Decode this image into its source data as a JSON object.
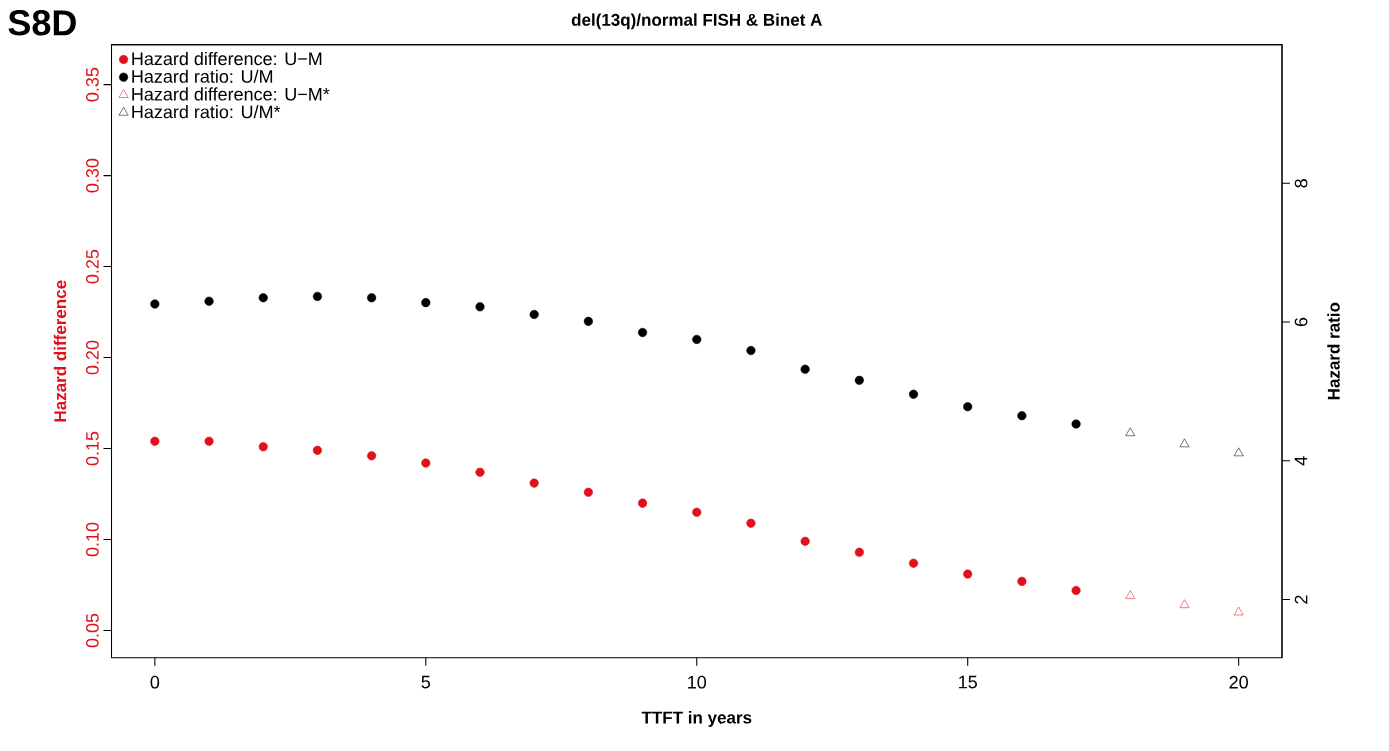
{
  "chart_data": {
    "type": "scatter",
    "title": "del(13q)/normal FISH & Binet A",
    "xlabel": "TTFT in years",
    "ylabel": "Hazard difference",
    "y2label": "Hazard ratio",
    "annotations": [
      "S8D"
    ],
    "xlim": [
      -0.8,
      20.8
    ],
    "xticks": [
      0,
      5,
      10,
      15,
      20
    ],
    "ylim": [
      0.035,
      0.372
    ],
    "yticks": [
      0.05,
      {
        "value": 0.1,
        "label": "0.10"
      },
      0.15,
      {
        "value": 0.2,
        "label": "0.20"
      },
      0.25,
      {
        "value": 0.3,
        "label": "0.30"
      },
      0.35
    ],
    "y2lim": [
      1.16,
      10.0
    ],
    "y2ticks": [
      2,
      4,
      6,
      8
    ],
    "legend": "top left",
    "series": [
      {
        "name": "Hazard difference: U−M",
        "color": "#e2101a",
        "marker": "circle",
        "axis": "y",
        "x": [
          0,
          1,
          2,
          3,
          4,
          5,
          6,
          7,
          8,
          9,
          10,
          11,
          12,
          13,
          14,
          15,
          16,
          17
        ],
        "values": [
          0.154,
          0.154,
          0.151,
          0.149,
          0.146,
          0.142,
          0.137,
          0.131,
          0.126,
          0.12,
          0.115,
          0.109,
          0.099,
          0.093,
          0.087,
          0.081,
          0.077,
          0.072
        ]
      },
      {
        "name": "Hazard ratio: U/M",
        "color": "#000000",
        "marker": "circle",
        "axis": "y2",
        "x": [
          0,
          1,
          2,
          3,
          4,
          5,
          6,
          7,
          8,
          9,
          10,
          11,
          12,
          13,
          14,
          15,
          16,
          17
        ],
        "values": [
          6.26,
          6.3,
          6.35,
          6.37,
          6.35,
          6.28,
          6.22,
          6.11,
          6.01,
          5.85,
          5.75,
          5.59,
          5.32,
          5.16,
          4.96,
          4.78,
          4.65,
          4.53
        ]
      },
      {
        "name": "Hazard difference: U−M*",
        "color": "#e2101a",
        "marker": "triangle",
        "axis": "y",
        "x": [
          18,
          19,
          20
        ],
        "values": [
          0.069,
          0.064,
          0.06
        ]
      },
      {
        "name": "Hazard ratio: U/M*",
        "color": "#000000",
        "marker": "triangle",
        "axis": "y2",
        "x": [
          18,
          19,
          20
        ],
        "values": [
          4.4,
          4.24,
          4.11
        ]
      }
    ]
  }
}
